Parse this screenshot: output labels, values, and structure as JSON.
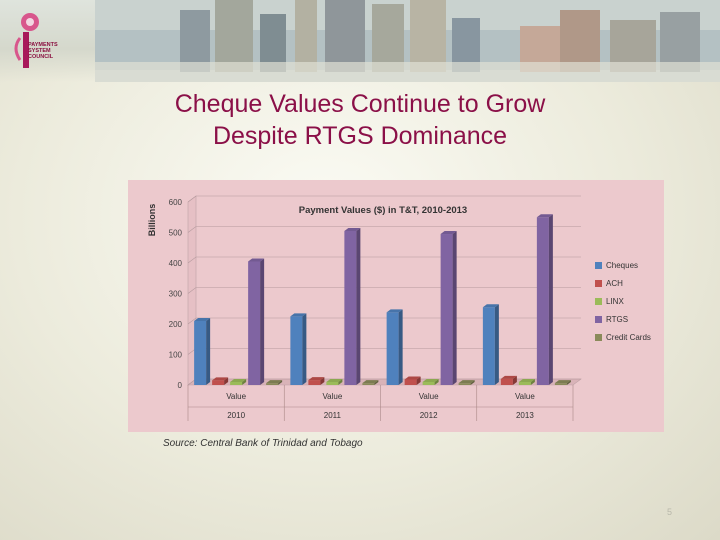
{
  "slide": {
    "logo_text_lines": [
      "PAYMENTS",
      "SYSTEM",
      "COUNCIL"
    ],
    "title_line1": "Cheque Values Continue to Grow",
    "title_line2": "Despite RTGS Dominance",
    "source": "Source: Central Bank of Trinidad and Tobago",
    "page_number": "5"
  },
  "colors": {
    "title": "#8b1048",
    "chart_bg": "#ecc9cd",
    "cheques": "#4f81bd",
    "ach": "#c0504d",
    "linx": "#9bbb59",
    "rtgs": "#8064a2",
    "credit_cards": "#8a8a5a"
  },
  "chart_data": {
    "type": "bar",
    "title": "Payment Values ($) in T&T, 2010-2013",
    "ylabel": "Billions",
    "ylim": [
      0,
      600
    ],
    "yticks": [
      0,
      100,
      200,
      300,
      400,
      500,
      600
    ],
    "categories": [
      "Value",
      "Value",
      "Value",
      "Value"
    ],
    "category_groups": [
      "2010",
      "2011",
      "2012",
      "2013"
    ],
    "grid": true,
    "legend_position": "right",
    "series": [
      {
        "name": "Cheques",
        "values": [
          210,
          225,
          238,
          255
        ]
      },
      {
        "name": "ACH",
        "values": [
          15,
          16,
          18,
          20
        ]
      },
      {
        "name": "LINX",
        "values": [
          10,
          10,
          10,
          10
        ]
      },
      {
        "name": "RTGS",
        "values": [
          405,
          505,
          495,
          550
        ]
      },
      {
        "name": "Credit Cards",
        "values": [
          6,
          6,
          6,
          6
        ]
      }
    ]
  }
}
